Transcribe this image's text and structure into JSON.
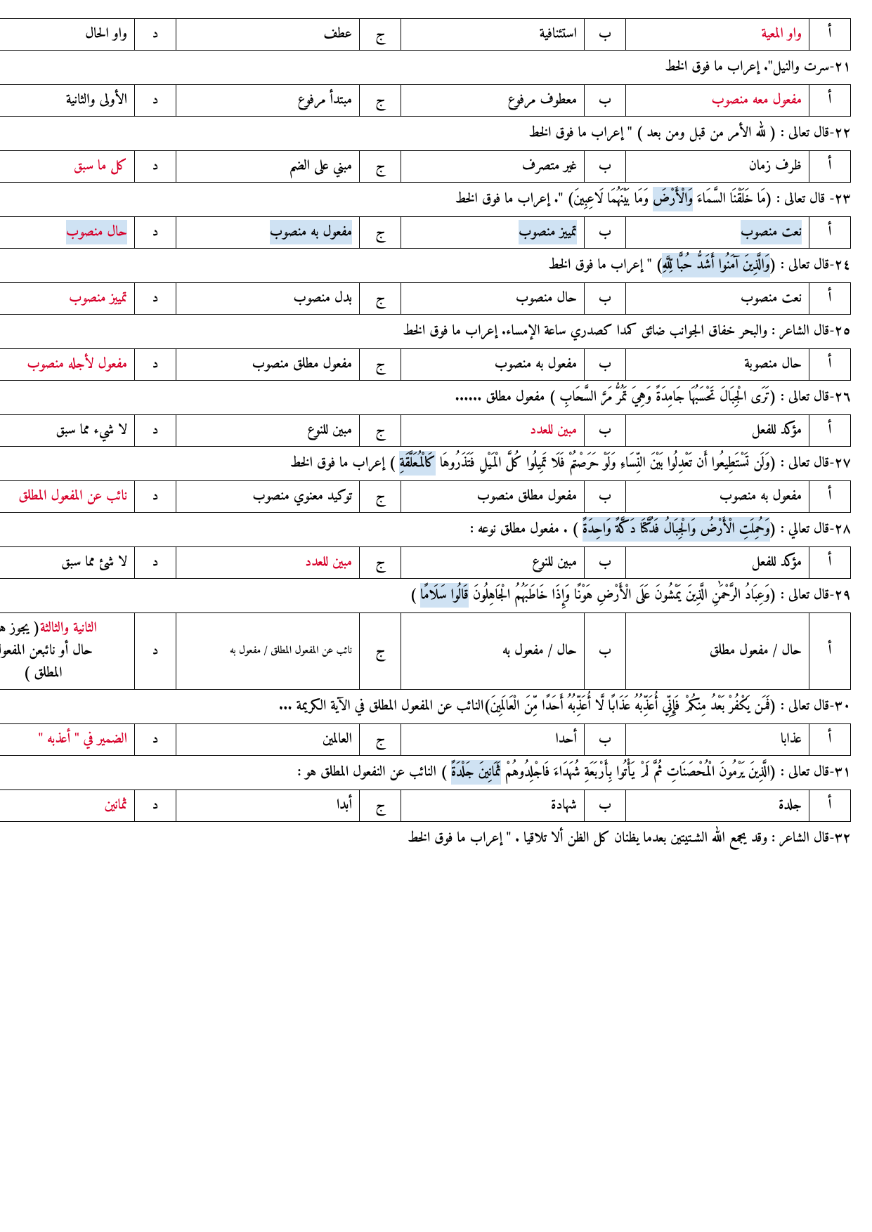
{
  "letters": {
    "a": "أ",
    "b": "ب",
    "c": "ج",
    "d": "د"
  },
  "rows": [
    {
      "type": "options",
      "opts": [
        {
          "text": "واو المعية",
          "red": true
        },
        {
          "text": "استئنافية"
        },
        {
          "text": "عطف"
        },
        {
          "text": "واو الحال"
        }
      ]
    },
    {
      "type": "prompt",
      "text": "٢١-سرت والنيل\".  إعراب ما فوق الخط"
    },
    {
      "type": "options",
      "opts": [
        {
          "text": "مفعول معه منصوب",
          "red": true
        },
        {
          "text": "معطوف مرفوع"
        },
        {
          "text": "مبتدأ مرفوع"
        },
        {
          "text": "الأولى والثانية"
        }
      ]
    },
    {
      "type": "prompt",
      "text": "٢٢-قال تعالى : ( لله الأمر من قبل ومن بعد ) \" إعراب ما فوق الخط"
    },
    {
      "type": "options",
      "opts": [
        {
          "text": "ظرف زمان"
        },
        {
          "text": "غير متصرف"
        },
        {
          "text": "مبني على الضم"
        },
        {
          "text": "كل ما سبق",
          "red": true
        }
      ]
    },
    {
      "type": "prompt",
      "pre": "٢٣-    قال تعالى : (مَا خَلَقْنَا السَّمَاءَ ",
      "hl": "وَالْأَرْضَ",
      "post": " وَمَا بَيْنَهُمَا لَاعِبِينَ) \". إعراب ما فوق الخط"
    },
    {
      "type": "options",
      "opts": [
        {
          "text": "نعت منصوب",
          "hl": true
        },
        {
          "text": "تمييز منصوب",
          "hl": true
        },
        {
          "text": "مفعول به منصوب",
          "hl": true
        },
        {
          "text": "حال منصوب",
          "red": true,
          "hl": true
        }
      ]
    },
    {
      "type": "prompt",
      "pre": "٢٤-قال تعالى : (",
      "hl": "وَالَّذِينَ آمَنُوا أَشَدُّ حُبًّا لِّلَّهِ",
      "post": ") \" إعراب ما فوق الخط"
    },
    {
      "type": "options",
      "opts": [
        {
          "text": "نعت منصوب"
        },
        {
          "text": "حال منصوب"
        },
        {
          "text": "بدل منصوب"
        },
        {
          "text": "تمييز منصوب",
          "red": true
        }
      ]
    },
    {
      "type": "prompt",
      "text": "٢٥-قال الشاعر : والبحر خفاق الجوانب ضائق      كمدا كصدري ساعة الإمساء. إعراب ما فوق الخط"
    },
    {
      "type": "options",
      "opts": [
        {
          "text": "حال منصوبة"
        },
        {
          "text": "مفعول به منصوب"
        },
        {
          "text": "مفعول مطلق منصوب"
        },
        {
          "text": "مفعول لأجله منصوب",
          "red": true
        }
      ]
    },
    {
      "type": "prompt",
      "text": "٢٦-قال تعالى : (تَرَى الْجِبَالَ تَحْسَبُهَا جَامِدَةً وَهِيَ تَمُرُّ مَرَّ السَّحَابِ ) مفعول مطلق ......"
    },
    {
      "type": "options",
      "opts": [
        {
          "text": "مؤكد للفعل"
        },
        {
          "text": "مبين للعدد",
          "red": true
        },
        {
          "text": "مبين للنوع"
        },
        {
          "text": "لا شيء مما سبق"
        }
      ]
    },
    {
      "type": "prompt",
      "pre": "٢٧-قال تعالى : (وَلَن تَسْتَطِيعُوا أَن تَعْدِلُوا بَيْنَ النِّسَاءِ وَلَوْ حَرَصْتُمْ  فَلَا تَمِيلُوا كُلَّ الْمَيْلِ فَتَذَرُوهَا ",
      "hl": "كَالْمُعَلَّقَةِ",
      "post": " ) إعراب ما فوق الخط"
    },
    {
      "type": "options",
      "opts": [
        {
          "text": "مفعول به منصوب"
        },
        {
          "text": "مفعول مطلق منصوب"
        },
        {
          "text": "توكيد معنوي منصوب"
        },
        {
          "text": "نائب عن المفعول المطلق",
          "red": true
        }
      ]
    },
    {
      "type": "prompt",
      "pre": "٢٨-قال تعالي : (",
      "hl": "وَحُمِلَتِ الْأَرْضُ وَالْجِبَالُ فَدُكَّتَا دَكَّةً وَاحِدَةً",
      "post": " ) . مفعول مطلق نوعه :"
    },
    {
      "type": "options",
      "opts": [
        {
          "text": "مؤكد للفعل"
        },
        {
          "text": "مبين للنوع"
        },
        {
          "text": "مبين للعدد",
          "red": true
        },
        {
          "text": "لا شئ مما سبق"
        }
      ]
    },
    {
      "type": "prompt",
      "pre": "٢٩-قال تعالى : (وَعِبَادُ الرَّحْمَٰنِ الَّذِينَ يَمْشُونَ عَلَى الْأَرْضِ هَوْنًا وَإِذَا خَاطَبَهُمُ الْجَاهِلُونَ ",
      "hl": "قَالُوا سَلَامًا",
      "post": "  )"
    },
    {
      "type": "options",
      "opts": [
        {
          "text": "حال / مفعول مطلق"
        },
        {
          "text": "حال / مفعول به"
        },
        {
          "text": "نائب عن المفعول المطلق / مفعول به",
          "small": true
        },
        {
          "multi": [
            "<span class=\"red\">الثانية والثالثة</span>( يجوز هونا",
            "حال أو نائبعن المفعول",
            "المطلق )"
          ]
        }
      ]
    },
    {
      "type": "prompt",
      "text": "٣٠-قال تعالى : (فَمَن يَكْفُرْ بَعْدُ مِنكُمْ فَإِنِّي أُعَذِّبُهُ عَذَابًا لَّا أُعَذِّبُهُ أَحَدًا مِّنَ الْعَالَمِينَ)النائب عن المفعول المطلق في الآية الكريمة ..."
    },
    {
      "type": "options",
      "opts": [
        {
          "text": "عذابا"
        },
        {
          "text": "أحدا"
        },
        {
          "text": "العالمين"
        },
        {
          "text": "الضمير في \" أعذبه \"",
          "red": true
        }
      ]
    },
    {
      "type": "prompt",
      "pre": "٣١-قال تعالى : (الَّذِينَ يَرْمُونَ الْمُحْصَنَاتِ ثُمَّ لَمْ يَأْتُوا بِأَرْبَعَةِ شُهَدَاءَ فَاجْلِدُوهُمْ ",
      "hl": "ثَمَانِينَ جَلْدَةً",
      "post": "  ) النائب عن النفعول المطلق هو :"
    },
    {
      "type": "options",
      "opts": [
        {
          "text": "جلدة"
        },
        {
          "text": "شهادة"
        },
        {
          "text": "أبدا"
        },
        {
          "text": "ثمانين",
          "red": true
        }
      ]
    },
    {
      "type": "prompt",
      "text": "٣٢-قال الشاعر : وقد يجمع الله الشـتيتين بعدما     يظنان كل الظن ألا تلاقيا . \" إعراب ما فوق الخط"
    }
  ]
}
